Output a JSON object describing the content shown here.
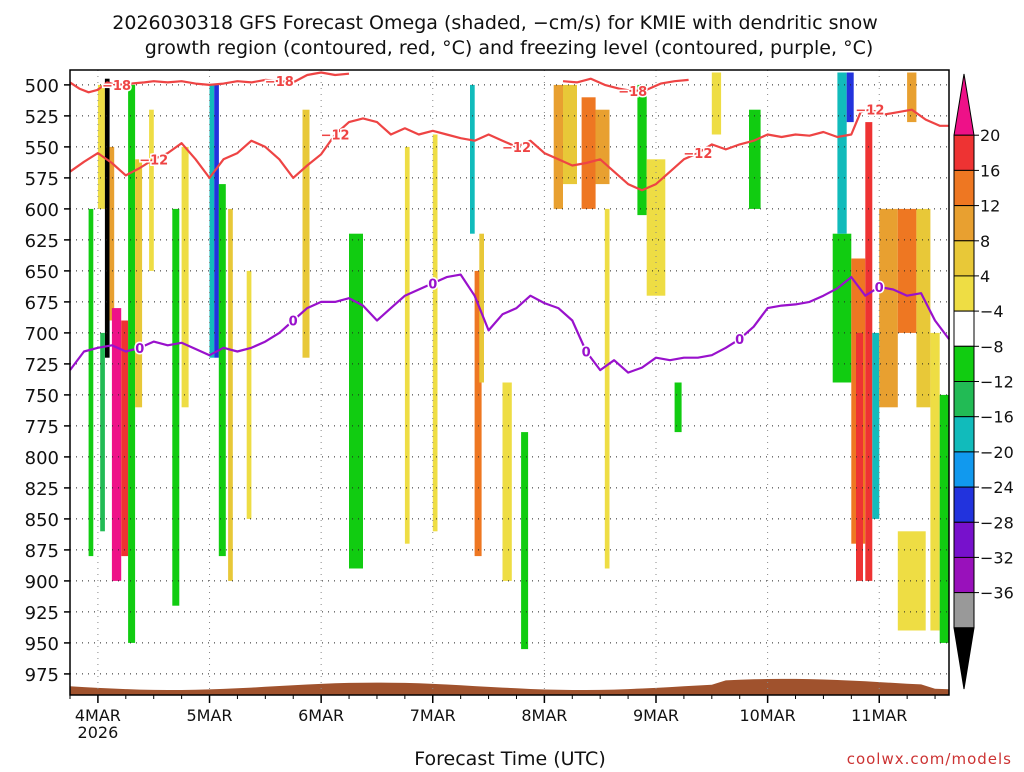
{
  "title_line1": "2026030318 GFS Forecast Omega (shaded, −cm/s) for KMIE with dendritic snow",
  "title_line2": "growth region (contoured, red, °C) and freezing level (contoured, purple, °C)",
  "xlabel": "Forecast Time (UTC)",
  "credit": "coolwx.com/models",
  "chart_data": {
    "type": "heatmap",
    "x_axis": {
      "range_hours": [
        0,
        189
      ],
      "ticks": [
        {
          "label": "4MAR",
          "sublabel": "2026",
          "hour": 6
        },
        {
          "label": "5MAR",
          "hour": 30
        },
        {
          "label": "6MAR",
          "hour": 54
        },
        {
          "label": "7MAR",
          "hour": 78
        },
        {
          "label": "8MAR",
          "hour": 102
        },
        {
          "label": "9MAR",
          "hour": 126
        },
        {
          "label": "10MAR",
          "hour": 150
        },
        {
          "label": "11MAR",
          "hour": 174
        }
      ]
    },
    "y_axis": {
      "range_hpa": [
        488,
        992
      ],
      "inverted": true,
      "ticks": [
        500,
        525,
        550,
        575,
        600,
        625,
        650,
        675,
        700,
        725,
        750,
        775,
        800,
        825,
        850,
        875,
        900,
        925,
        950,
        975
      ]
    },
    "colorbar": {
      "labels": [
        "20",
        "16",
        "12",
        "8",
        "4",
        "−4",
        "−8",
        "−12",
        "−16",
        "−20",
        "−24",
        "−28",
        "−32",
        "−36"
      ],
      "colors": [
        "#ee1188",
        "#ee3333",
        "#ee7722",
        "#e8a030",
        "#e8c838",
        "#eedd44",
        "#ffffff",
        "#11cc11",
        "#22bb55",
        "#11bbbb",
        "#1199ee",
        "#2233dd",
        "#7711cc",
        "#9911bb",
        "#999999",
        "#000000"
      ]
    },
    "contours": [
      {
        "level_labels": [
          "−18",
          "−18"
        ],
        "color": "#ee4444",
        "points": [
          [
            0,
            498
          ],
          [
            2,
            503
          ],
          [
            4,
            506
          ],
          [
            6,
            504
          ],
          [
            8,
            498
          ],
          [
            10,
            500
          ],
          [
            13,
            499
          ],
          [
            16,
            498
          ],
          [
            18,
            497
          ],
          [
            21,
            498
          ],
          [
            24,
            497
          ],
          [
            27,
            499
          ],
          [
            30,
            500
          ],
          [
            33,
            499
          ],
          [
            36,
            497
          ],
          [
            39,
            498
          ],
          [
            42,
            496
          ],
          [
            45,
            497
          ],
          [
            48,
            498
          ],
          [
            51,
            492
          ],
          [
            54,
            490
          ],
          [
            57,
            492
          ],
          [
            60,
            491
          ]
        ]
      },
      {
        "level_labels": [
          "−18"
        ],
        "color": "#ee4444",
        "points": [
          [
            106,
            497
          ],
          [
            109,
            498
          ],
          [
            112,
            495
          ],
          [
            115,
            500
          ],
          [
            118,
            503
          ],
          [
            121,
            505
          ],
          [
            124,
            504
          ],
          [
            127,
            499
          ],
          [
            130,
            497
          ],
          [
            133,
            496
          ]
        ]
      },
      {
        "level_labels": [
          "−12",
          "−12",
          "−12",
          "−12",
          "−12"
        ],
        "color": "#ee4444",
        "points": [
          [
            0,
            570
          ],
          [
            3,
            562
          ],
          [
            6,
            555
          ],
          [
            9,
            563
          ],
          [
            12,
            573
          ],
          [
            15,
            567
          ],
          [
            18,
            560
          ],
          [
            21,
            555
          ],
          [
            24,
            547
          ],
          [
            27,
            560
          ],
          [
            30,
            575
          ],
          [
            33,
            560
          ],
          [
            36,
            555
          ],
          [
            39,
            545
          ],
          [
            42,
            550
          ],
          [
            45,
            560
          ],
          [
            48,
            575
          ],
          [
            51,
            565
          ],
          [
            54,
            556
          ],
          [
            57,
            540
          ],
          [
            60,
            530
          ],
          [
            63,
            527
          ],
          [
            66,
            530
          ],
          [
            69,
            540
          ],
          [
            72,
            535
          ],
          [
            75,
            540
          ],
          [
            78,
            537
          ],
          [
            81,
            540
          ],
          [
            84,
            543
          ],
          [
            87,
            545
          ],
          [
            90,
            540
          ],
          [
            93,
            545
          ],
          [
            96,
            550
          ],
          [
            99,
            545
          ],
          [
            102,
            555
          ],
          [
            105,
            560
          ],
          [
            108,
            565
          ],
          [
            111,
            563
          ],
          [
            114,
            560
          ],
          [
            117,
            570
          ],
          [
            120,
            580
          ],
          [
            123,
            585
          ],
          [
            126,
            580
          ],
          [
            129,
            570
          ],
          [
            132,
            560
          ],
          [
            135,
            555
          ],
          [
            138,
            548
          ],
          [
            141,
            552
          ],
          [
            144,
            548
          ],
          [
            147,
            545
          ],
          [
            150,
            540
          ],
          [
            153,
            542
          ],
          [
            156,
            540
          ],
          [
            159,
            541
          ],
          [
            162,
            538
          ],
          [
            165,
            542
          ],
          [
            168,
            540
          ],
          [
            170,
            522
          ],
          [
            172,
            520
          ],
          [
            175,
            524
          ],
          [
            178,
            522
          ],
          [
            181,
            520
          ],
          [
            184,
            528
          ],
          [
            187,
            533
          ],
          [
            189,
            533
          ]
        ]
      },
      {
        "level_labels": [
          "0",
          "0",
          "0",
          "0",
          "0",
          "0"
        ],
        "color": "#9911cc",
        "points": [
          [
            0,
            730
          ],
          [
            3,
            715
          ],
          [
            6,
            712
          ],
          [
            9,
            710
          ],
          [
            12,
            715
          ],
          [
            15,
            712
          ],
          [
            18,
            707
          ],
          [
            21,
            710
          ],
          [
            24,
            708
          ],
          [
            27,
            713
          ],
          [
            30,
            718
          ],
          [
            33,
            712
          ],
          [
            36,
            715
          ],
          [
            39,
            712
          ],
          [
            42,
            707
          ],
          [
            45,
            700
          ],
          [
            48,
            690
          ],
          [
            51,
            680
          ],
          [
            54,
            675
          ],
          [
            57,
            675
          ],
          [
            60,
            672
          ],
          [
            63,
            678
          ],
          [
            66,
            690
          ],
          [
            69,
            680
          ],
          [
            72,
            670
          ],
          [
            75,
            665
          ],
          [
            78,
            660
          ],
          [
            81,
            655
          ],
          [
            84,
            653
          ],
          [
            87,
            670
          ],
          [
            90,
            698
          ],
          [
            93,
            685
          ],
          [
            96,
            680
          ],
          [
            99,
            670
          ],
          [
            102,
            676
          ],
          [
            105,
            680
          ],
          [
            108,
            690
          ],
          [
            111,
            715
          ],
          [
            114,
            730
          ],
          [
            117,
            722
          ],
          [
            120,
            732
          ],
          [
            123,
            728
          ],
          [
            126,
            720
          ],
          [
            129,
            722
          ],
          [
            132,
            720
          ],
          [
            135,
            720
          ],
          [
            138,
            718
          ],
          [
            141,
            712
          ],
          [
            144,
            705
          ],
          [
            147,
            695
          ],
          [
            150,
            680
          ],
          [
            153,
            678
          ],
          [
            156,
            677
          ],
          [
            159,
            675
          ],
          [
            162,
            670
          ],
          [
            165,
            664
          ],
          [
            168,
            655
          ],
          [
            171,
            670
          ],
          [
            174,
            663
          ],
          [
            177,
            665
          ],
          [
            180,
            670
          ],
          [
            183,
            668
          ],
          [
            186,
            690
          ],
          [
            189,
            705
          ]
        ]
      }
    ],
    "terrain_color": "#a0522d",
    "shaded_regions": [
      {
        "hours": [
          6,
          7.5
        ],
        "hpa": [
          500,
          600
        ],
        "color": "#eedd44"
      },
      {
        "hours": [
          7.5,
          8.5
        ],
        "hpa": [
          495,
          720
        ],
        "color": "#000000"
      },
      {
        "hours": [
          8.5,
          9.5
        ],
        "hpa": [
          550,
          690
        ],
        "color": "#e8a030"
      },
      {
        "hours": [
          9,
          11
        ],
        "hpa": [
          680,
          900
        ],
        "color": "#ee1188"
      },
      {
        "hours": [
          11,
          12.5
        ],
        "hpa": [
          690,
          880
        ],
        "color": "#ee3333"
      },
      {
        "hours": [
          6.5,
          7.5
        ],
        "hpa": [
          700,
          860
        ],
        "color": "#22bb55"
      },
      {
        "hours": [
          4,
          5
        ],
        "hpa": [
          600,
          880
        ],
        "color": "#11cc11"
      },
      {
        "hours": [
          12.5,
          14
        ],
        "hpa": [
          500,
          950
        ],
        "color": "#11cc11"
      },
      {
        "hours": [
          14,
          15.5
        ],
        "hpa": [
          560,
          760
        ],
        "color": "#e8c838"
      },
      {
        "hours": [
          17,
          18
        ],
        "hpa": [
          520,
          650
        ],
        "color": "#eedd44"
      },
      {
        "hours": [
          22,
          23.5
        ],
        "hpa": [
          600,
          920
        ],
        "color": "#11cc11"
      },
      {
        "hours": [
          24,
          25.5
        ],
        "hpa": [
          550,
          760
        ],
        "color": "#eedd44"
      },
      {
        "hours": [
          30,
          31
        ],
        "hpa": [
          500,
          720
        ],
        "color": "#11bbbb"
      },
      {
        "hours": [
          31,
          32
        ],
        "hpa": [
          500,
          720
        ],
        "color": "#2233dd"
      },
      {
        "hours": [
          32,
          33.5
        ],
        "hpa": [
          580,
          880
        ],
        "color": "#11cc11"
      },
      {
        "hours": [
          34,
          35
        ],
        "hpa": [
          600,
          900
        ],
        "color": "#e8c838"
      },
      {
        "hours": [
          38,
          39
        ],
        "hpa": [
          650,
          850
        ],
        "color": "#eedd44"
      },
      {
        "hours": [
          50,
          51.5
        ],
        "hpa": [
          520,
          720
        ],
        "color": "#e8c838"
      },
      {
        "hours": [
          60,
          63
        ],
        "hpa": [
          620,
          890
        ],
        "color": "#11cc11"
      },
      {
        "hours": [
          72,
          73
        ],
        "hpa": [
          550,
          870
        ],
        "color": "#eedd44"
      },
      {
        "hours": [
          78,
          79
        ],
        "hpa": [
          540,
          860
        ],
        "color": "#eedd44"
      },
      {
        "hours": [
          86,
          87
        ],
        "hpa": [
          500,
          620
        ],
        "color": "#11bbbb"
      },
      {
        "hours": [
          87,
          88.5
        ],
        "hpa": [
          650,
          880
        ],
        "color": "#ee7722"
      },
      {
        "hours": [
          88,
          89
        ],
        "hpa": [
          620,
          740
        ],
        "color": "#e8c838"
      },
      {
        "hours": [
          93,
          95
        ],
        "hpa": [
          740,
          900
        ],
        "color": "#eedd44"
      },
      {
        "hours": [
          97,
          98.5
        ],
        "hpa": [
          780,
          955
        ],
        "color": "#11cc11"
      },
      {
        "hours": [
          104,
          106
        ],
        "hpa": [
          500,
          600
        ],
        "color": "#e8a030"
      },
      {
        "hours": [
          106,
          109
        ],
        "hpa": [
          500,
          580
        ],
        "color": "#e8c838"
      },
      {
        "hours": [
          110,
          113
        ],
        "hpa": [
          510,
          600
        ],
        "color": "#ee7722"
      },
      {
        "hours": [
          113,
          116
        ],
        "hpa": [
          520,
          580
        ],
        "color": "#e8a030"
      },
      {
        "hours": [
          115,
          116
        ],
        "hpa": [
          600,
          890
        ],
        "color": "#eedd44"
      },
      {
        "hours": [
          122,
          124
        ],
        "hpa": [
          500,
          605
        ],
        "color": "#11cc11"
      },
      {
        "hours": [
          124,
          128
        ],
        "hpa": [
          560,
          670
        ],
        "color": "#eedd44"
      },
      {
        "hours": [
          130,
          131.5
        ],
        "hpa": [
          740,
          780
        ],
        "color": "#11cc11"
      },
      {
        "hours": [
          138,
          140
        ],
        "hpa": [
          490,
          540
        ],
        "color": "#eedd44"
      },
      {
        "hours": [
          146,
          148.5
        ],
        "hpa": [
          520,
          600
        ],
        "color": "#11cc11"
      },
      {
        "hours": [
          164,
          168
        ],
        "hpa": [
          620,
          740
        ],
        "color": "#11cc11"
      },
      {
        "hours": [
          165,
          167
        ],
        "hpa": [
          490,
          620
        ],
        "color": "#11bbbb"
      },
      {
        "hours": [
          167,
          168.5
        ],
        "hpa": [
          490,
          530
        ],
        "color": "#2233dd"
      },
      {
        "hours": [
          168,
          171
        ],
        "hpa": [
          640,
          870
        ],
        "color": "#ee7722"
      },
      {
        "hours": [
          169,
          170.5
        ],
        "hpa": [
          700,
          900
        ],
        "color": "#ee3333"
      },
      {
        "hours": [
          171,
          172.5
        ],
        "hpa": [
          530,
          900
        ],
        "color": "#ee3333"
      },
      {
        "hours": [
          172.5,
          174
        ],
        "hpa": [
          700,
          850
        ],
        "color": "#11bbbb"
      },
      {
        "hours": [
          174,
          178
        ],
        "hpa": [
          600,
          760
        ],
        "color": "#e8a030"
      },
      {
        "hours": [
          178,
          182
        ],
        "hpa": [
          600,
          700
        ],
        "color": "#ee7722"
      },
      {
        "hours": [
          182,
          185
        ],
        "hpa": [
          600,
          760
        ],
        "color": "#e8c838"
      },
      {
        "hours": [
          185,
          187
        ],
        "hpa": [
          700,
          940
        ],
        "color": "#eedd44"
      },
      {
        "hours": [
          187,
          189
        ],
        "hpa": [
          750,
          950
        ],
        "color": "#11cc11"
      },
      {
        "hours": [
          178,
          184
        ],
        "hpa": [
          860,
          940
        ],
        "color": "#eedd44"
      },
      {
        "hours": [
          180,
          182
        ],
        "hpa": [
          490,
          530
        ],
        "color": "#e8a030"
      }
    ]
  }
}
